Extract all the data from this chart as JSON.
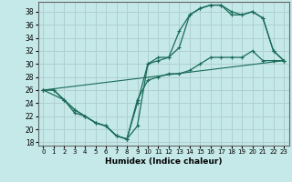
{
  "xlabel": "Humidex (Indice chaleur)",
  "xlim": [
    -0.5,
    23.5
  ],
  "ylim": [
    17.5,
    39.5
  ],
  "xticks": [
    0,
    1,
    2,
    3,
    4,
    5,
    6,
    7,
    8,
    9,
    10,
    11,
    12,
    13,
    14,
    15,
    16,
    17,
    18,
    19,
    20,
    21,
    22,
    23
  ],
  "yticks": [
    18,
    20,
    22,
    24,
    26,
    28,
    30,
    32,
    34,
    36,
    38
  ],
  "background_color": "#c5e8e8",
  "line_color": "#1a6b5a",
  "grid_color": "#b0d0d0",
  "line1_x": [
    0,
    1,
    2,
    3,
    4,
    5,
    6,
    7,
    8,
    9,
    10,
    11,
    12,
    13,
    14,
    15,
    16,
    17,
    18,
    19,
    20,
    21,
    22,
    23
  ],
  "line1_y": [
    26,
    26,
    24.5,
    22.5,
    22,
    21,
    20.5,
    19,
    18.5,
    20.5,
    30,
    31,
    31,
    32.5,
    37.5,
    38.5,
    39,
    39,
    38,
    37.5,
    38,
    37,
    32,
    30.5
  ],
  "line2_x": [
    0,
    1,
    2,
    3,
    4,
    5,
    6,
    7,
    8,
    9,
    10,
    11,
    12,
    13,
    14,
    15,
    16,
    17,
    18,
    19,
    20,
    21,
    22,
    23
  ],
  "line2_y": [
    26,
    26,
    24.5,
    23,
    22,
    21,
    20.5,
    19,
    18.5,
    24,
    30,
    30.5,
    31,
    35,
    37.5,
    38.5,
    39,
    39,
    37.5,
    37.5,
    38,
    37,
    32,
    30.5
  ],
  "line3_x": [
    0,
    2,
    3,
    4,
    5,
    6,
    7,
    8,
    9,
    10,
    11,
    12,
    13,
    14,
    15,
    16,
    17,
    18,
    19,
    20,
    21,
    22,
    23
  ],
  "line3_y": [
    26,
    24.5,
    23,
    22,
    21,
    20.5,
    19,
    18.5,
    24.5,
    27.5,
    28,
    28.5,
    28.5,
    29,
    30,
    31,
    31,
    31,
    31,
    32,
    30.5,
    30.5,
    30.5
  ],
  "line4_x": [
    0,
    23
  ],
  "line4_y": [
    26,
    30.5
  ]
}
